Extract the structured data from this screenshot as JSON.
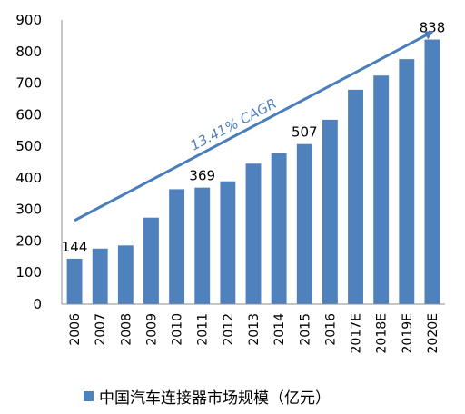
{
  "chart_data": {
    "type": "bar",
    "categories": [
      "2006",
      "2007",
      "2008",
      "2009",
      "2010",
      "2011",
      "2012",
      "2013",
      "2014",
      "2015",
      "2016",
      "2017E",
      "2018E",
      "2019E",
      "2020E"
    ],
    "series": [
      {
        "name": "中国汽车连接器市场规模（亿元）",
        "values": [
          144,
          176,
          186,
          274,
          364,
          369,
          389,
          445,
          478,
          507,
          584,
          679,
          724,
          776,
          838
        ]
      }
    ],
    "data_labels": [
      {
        "category": "2006",
        "text": "144"
      },
      {
        "category": "2011",
        "text": "369"
      },
      {
        "category": "2015",
        "text": "507"
      },
      {
        "category": "2020E",
        "text": "838"
      }
    ],
    "annotation": {
      "text": "13.41% CAGR",
      "from": {
        "category": "2006",
        "value": 265
      },
      "to": {
        "category": "2020E",
        "value": 862
      }
    },
    "yticks": [
      0,
      100,
      200,
      300,
      400,
      500,
      600,
      700,
      800,
      900
    ],
    "ylim": [
      0,
      900
    ],
    "grid": false,
    "legend_position": "bottom",
    "title": "",
    "xlabel": "",
    "ylabel": "",
    "colors": {
      "bar": "#4f81bd",
      "arrow": "#4a7ebb",
      "axis": "#8c8c8c",
      "annotation_text": "#4f81bd"
    }
  }
}
